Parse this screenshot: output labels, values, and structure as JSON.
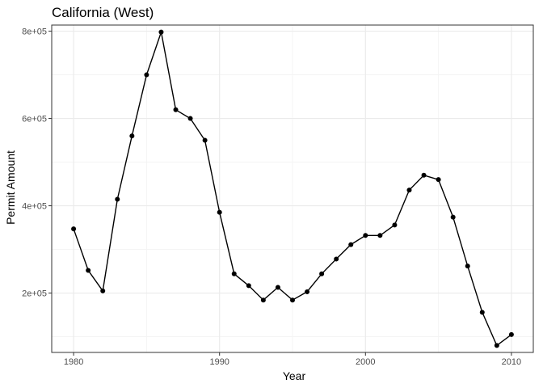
{
  "chart_data": {
    "type": "line",
    "title": "California (West)",
    "xlabel": "Year",
    "ylabel": "Permit Amount",
    "x": [
      1980,
      1981,
      1982,
      1983,
      1984,
      1985,
      1986,
      1987,
      1988,
      1989,
      1990,
      1991,
      1992,
      1993,
      1994,
      1995,
      1996,
      1997,
      1998,
      1999,
      2000,
      2001,
      2002,
      2003,
      2004,
      2005,
      2006,
      2007,
      2008,
      2009,
      2010
    ],
    "series": [
      {
        "values": [
          347000,
          252000,
          205000,
          415000,
          560000,
          700000,
          798000,
          620000,
          600000,
          550000,
          385000,
          244000,
          217000,
          184000,
          213000,
          184000,
          203000,
          244000,
          278000,
          311000,
          332000,
          332000,
          356000,
          436000,
          470000,
          460000,
          374000,
          262000,
          156000,
          80000,
          105000
        ]
      }
    ],
    "xlim": [
      1978.5,
      2011.5
    ],
    "ylim": [
      64000,
      814000
    ],
    "x_ticks": [
      1980,
      1990,
      2000,
      2010
    ],
    "x_tick_labels": [
      "1980",
      "1990",
      "2000",
      "2010"
    ],
    "y_ticks": [
      200000,
      400000,
      600000,
      800000
    ],
    "y_tick_labels": [
      "2e+05",
      "4e+05",
      "6e+05",
      "8e+05"
    ],
    "x_minor_ticks": [
      1985,
      1995,
      2005
    ],
    "y_minor_ticks": [
      100000,
      300000,
      500000,
      700000
    ],
    "grid": true,
    "theme": "bw",
    "colors": {
      "line": "#000000",
      "point": "#000000",
      "grid_major": "#ebebeb",
      "grid_minor": "#f4f4f4",
      "border": "#333333"
    }
  }
}
